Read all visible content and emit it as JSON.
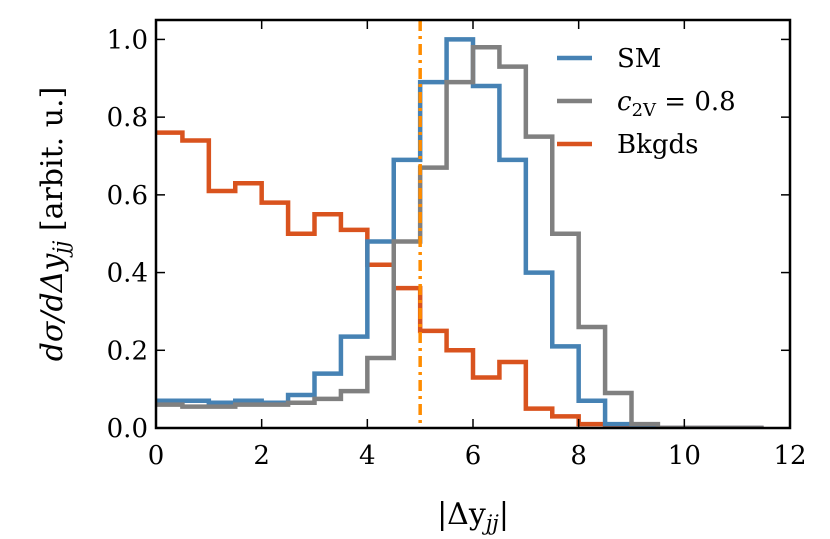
{
  "chart_data": {
    "type": "line",
    "subtype": "step-histogram",
    "title": "",
    "xlabel": "|Δy",
    "xlabel_sub": "jj",
    "xlabel_close": "|",
    "ylabel": "dσ/dΔy",
    "ylabel_sub": "jj",
    "ylabel_unit": " [arbit. u.]",
    "xlim": [
      0,
      12
    ],
    "ylim": [
      0,
      1.05
    ],
    "xticks": [
      0,
      2,
      4,
      6,
      8,
      10,
      12
    ],
    "xtick_labels": [
      "0",
      "2",
      "4",
      "6",
      "8",
      "10",
      "12"
    ],
    "yticks": [
      0.0,
      0.2,
      0.4,
      0.6,
      0.8,
      1.0
    ],
    "ytick_labels": [
      "0.0",
      "0.2",
      "0.4",
      "0.6",
      "0.8",
      "1.0"
    ],
    "bin_edges": [
      0,
      0.5,
      1,
      1.5,
      2,
      2.5,
      3,
      3.5,
      4,
      4.5,
      5,
      5.5,
      6,
      6.5,
      7,
      7.5,
      8,
      8.5,
      9,
      9.5,
      10,
      10.5,
      11,
      11.5
    ],
    "series": [
      {
        "name": "SM",
        "legend_label": "SM",
        "color": "#4682b4",
        "values": [
          0.07,
          0.07,
          0.065,
          0.07,
          0.065,
          0.085,
          0.14,
          0.235,
          0.48,
          0.69,
          0.89,
          1.0,
          0.88,
          0.69,
          0.4,
          0.21,
          0.07,
          0.01,
          0.0,
          0.0,
          0.0,
          0.0,
          0.0
        ]
      },
      {
        "name": "c2V = 0.8",
        "legend_label_main": "c",
        "legend_label_sub": "2V",
        "legend_label_rest": " = 0.8",
        "color": "#808080",
        "values": [
          0.06,
          0.055,
          0.055,
          0.06,
          0.06,
          0.065,
          0.075,
          0.095,
          0.18,
          0.48,
          0.67,
          0.89,
          0.98,
          0.93,
          0.75,
          0.5,
          0.26,
          0.09,
          0.01,
          0.0,
          0.0,
          0.0,
          0.0
        ]
      },
      {
        "name": "Bkgds",
        "legend_label": "Bkgds",
        "color": "#d9531e",
        "values": [
          0.76,
          0.74,
          0.61,
          0.63,
          0.58,
          0.5,
          0.55,
          0.51,
          0.42,
          0.36,
          0.25,
          0.2,
          0.13,
          0.17,
          0.05,
          0.03,
          0.01,
          0.005,
          0.0,
          0.0,
          0.0,
          0.0,
          0.0
        ]
      }
    ],
    "vline": {
      "x": 5,
      "color": "#ff8c00",
      "style": "dash-dot"
    },
    "legend_position": "top-right"
  }
}
